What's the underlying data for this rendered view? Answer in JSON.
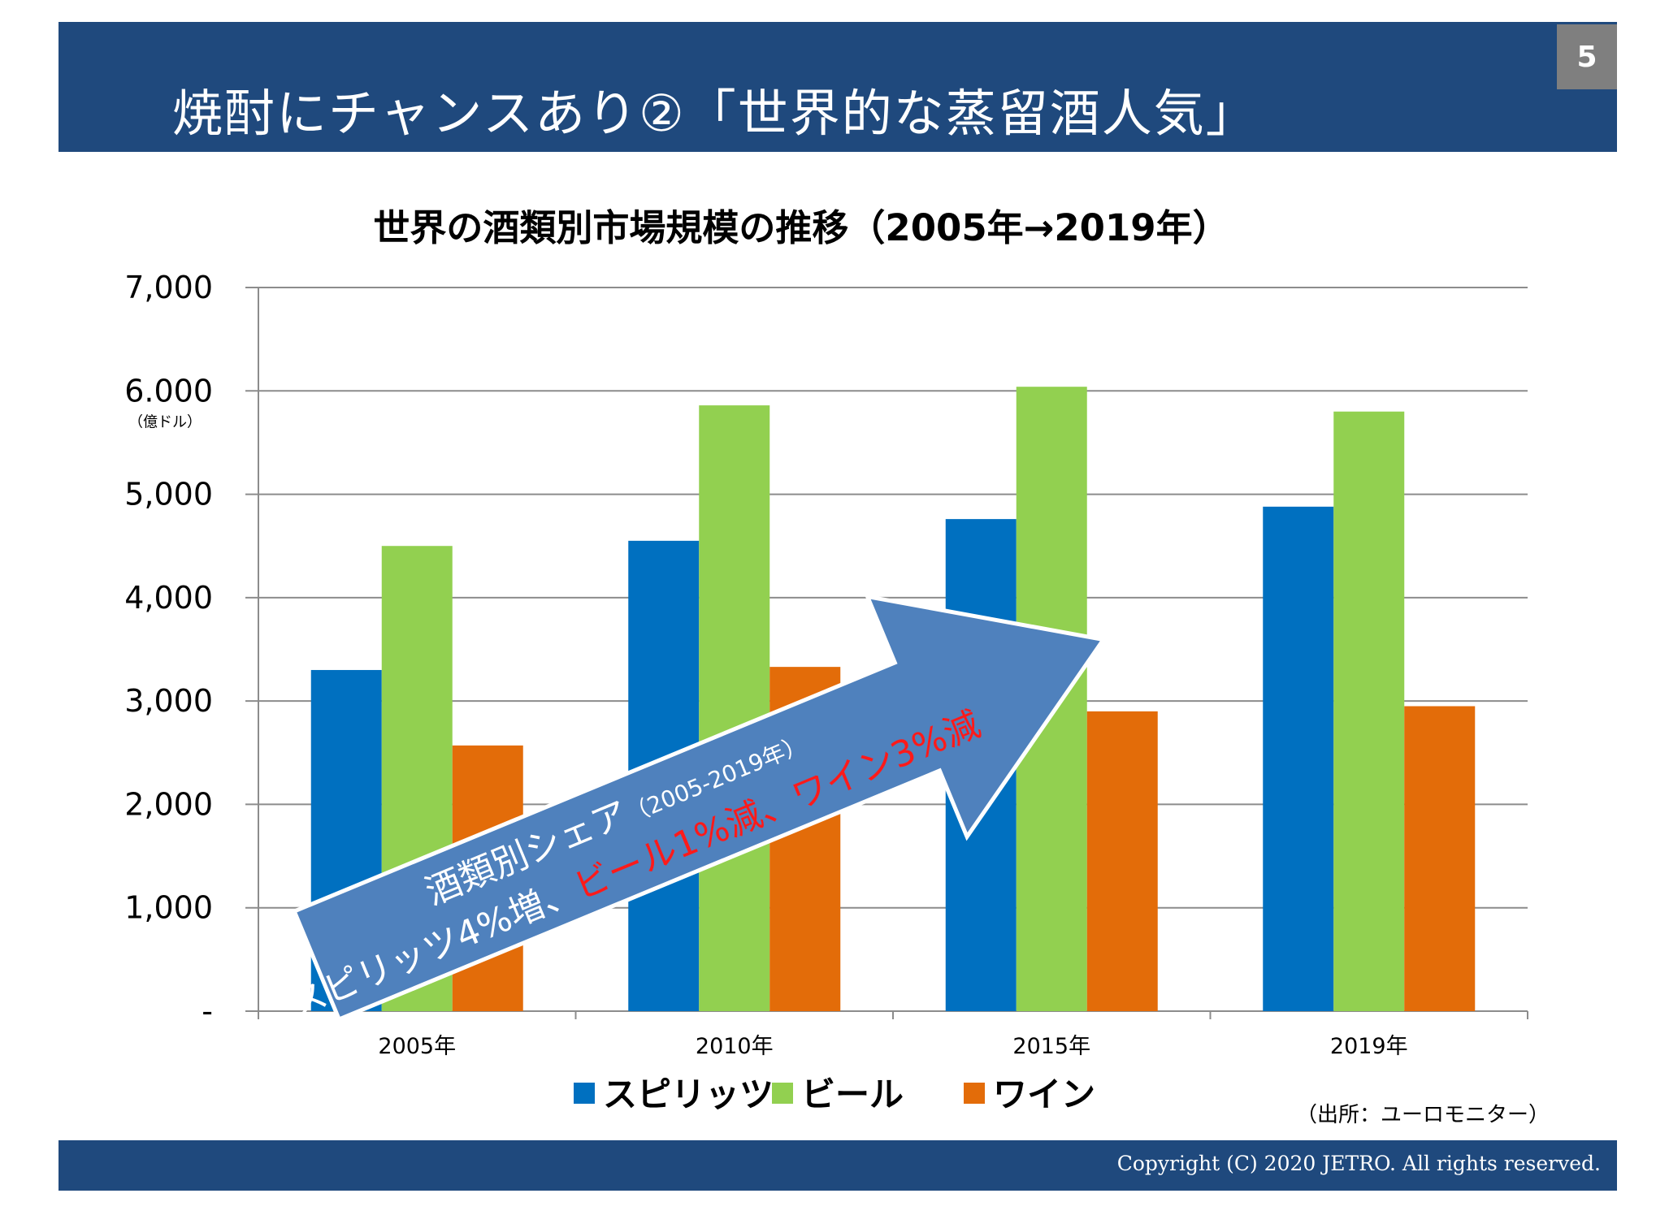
{
  "slide": {
    "title": "焼酎にチャンスあり②「世界的な蒸留酒人気」",
    "page_number": "5",
    "copyright": "Copyright (C) 2020 JETRO. All rights reserved.",
    "source": "（出所：ユーロモニター）",
    "colors": {
      "header": "#1f497d",
      "badge": "#7f7f7f"
    }
  },
  "chart_data": {
    "type": "bar",
    "title": "世界の酒類別市場規模の推移（2005年→2019年）",
    "unit_label": "（億ドル）",
    "categories": [
      "2005年",
      "2010年",
      "2015年",
      "2019年"
    ],
    "series": [
      {
        "name": "スピリッツ",
        "color": "#0070c0",
        "values": [
          3300,
          4550,
          4760,
          4880
        ]
      },
      {
        "name": "ビール",
        "color": "#92d050",
        "values": [
          4500,
          5860,
          6040,
          5800
        ]
      },
      {
        "name": "ワイン",
        "color": "#e36c09",
        "values": [
          2570,
          3330,
          2900,
          2950
        ]
      }
    ],
    "ylim": [
      0,
      7000
    ],
    "yticks": [
      0,
      1000,
      2000,
      3000,
      4000,
      5000,
      6000,
      7000
    ],
    "ytick_labels": [
      "-",
      "1,000",
      "2,000",
      "3,000",
      "4,000",
      "5,000",
      "6.000",
      "7,000"
    ],
    "grid": true,
    "legend": "bottom",
    "annotation": {
      "line1": "酒類別シェア",
      "line1_period": "（2005-2019年）",
      "line2_white": "スピリッツ4%増、",
      "line2_red": "ビール1%減、ワイン3%減",
      "arrow_color": "#4f81bd",
      "red_color": "#ff1a1a"
    }
  }
}
